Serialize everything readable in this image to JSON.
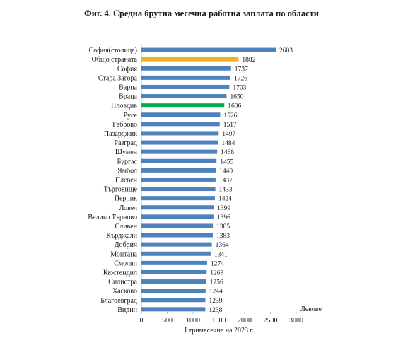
{
  "chart_data": {
    "type": "bar",
    "orientation": "horizontal",
    "title": "Фиг. 4. Средна брутна месечна работна заплата по области",
    "xlabel": "I тримесечие на 2023  г.",
    "unit_label": "Левове",
    "xlim": [
      0,
      3000
    ],
    "xticks": [
      "0",
      "500",
      "1000",
      "1500",
      "2000",
      "2500",
      "3000"
    ],
    "categories": [
      "София(столица)",
      "Общо страната",
      "София",
      "Стара Загора",
      "Варна",
      "Враца",
      "Пловдив",
      "Русе",
      "Габрово",
      "Пазарджик",
      "Разград",
      "Шумен",
      "Бургас",
      "Ямбол",
      "Плевен",
      "Търговище",
      "Перник",
      "Ловеч",
      "Велико Търново",
      "Сливен",
      "Кърджали",
      "Добрич",
      "Монтана",
      "Смолян",
      "Кюстендил",
      "Силистра",
      "Хасково",
      "Благоевград",
      "Видин"
    ],
    "values": [
      2603,
      1882,
      1737,
      1726,
      1703,
      1650,
      1606,
      1526,
      1517,
      1497,
      1484,
      1468,
      1455,
      1440,
      1437,
      1433,
      1424,
      1399,
      1396,
      1385,
      1383,
      1364,
      1341,
      1274,
      1263,
      1256,
      1244,
      1239,
      1238
    ],
    "value_labels": [
      "2603",
      "1882",
      "1737",
      "1726",
      "1703",
      "1650",
      "1606",
      "1526",
      "1517",
      "1497",
      "1484",
      "1468",
      "1455",
      "1440",
      "1437",
      "1433",
      "1424",
      "1399",
      "1396",
      "1385",
      "1383",
      "1364",
      "1341",
      "1274",
      "1263",
      "1256",
      "1244",
      "1239",
      "1238"
    ],
    "colors": {
      "default": "#4f81bd",
      "highlight_country": "#f0b323",
      "highlight_plovdiv": "#00b050"
    },
    "highlighted": {
      "Общо страната": "highlight_country",
      "Пловдив": "highlight_plovdiv"
    },
    "grid": false,
    "legend": "none"
  }
}
